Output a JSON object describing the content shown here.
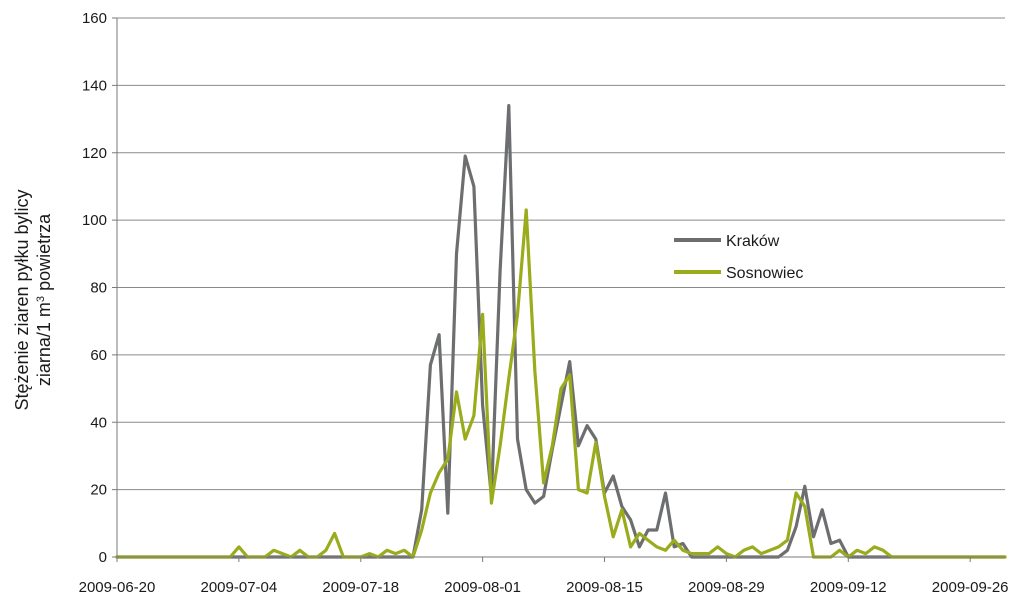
{
  "chart_data": {
    "type": "line",
    "ylabel_line1": "Stężenie ziaren pyłku bylicy",
    "ylabel_line2_prefix": "ziarna/1 m",
    "ylabel_line2_sup": "3",
    "ylabel_line2_suffix": " powietrza",
    "ylim": [
      0,
      160
    ],
    "y_ticks": [
      0,
      20,
      40,
      60,
      80,
      100,
      120,
      140,
      160
    ],
    "x_ticks": [
      "2009-06-20",
      "2009-07-04",
      "2009-07-18",
      "2009-08-01",
      "2009-08-15",
      "2009-08-29",
      "2009-09-12",
      "2009-09-26"
    ],
    "x_start": "2009-06-20",
    "x_end": "2009-09-30",
    "grid": "horizontal",
    "legend_position": "center-right",
    "series": [
      {
        "name": "Kraków",
        "color": "#6d6e70",
        "points": [
          [
            "2009-06-20",
            0
          ],
          [
            "2009-07-24",
            0
          ],
          [
            "2009-07-25",
            14
          ],
          [
            "2009-07-26",
            57
          ],
          [
            "2009-07-27",
            66
          ],
          [
            "2009-07-28",
            13
          ],
          [
            "2009-07-29",
            90
          ],
          [
            "2009-07-30",
            119
          ],
          [
            "2009-07-31",
            110
          ],
          [
            "2009-08-01",
            45
          ],
          [
            "2009-08-02",
            18
          ],
          [
            "2009-08-03",
            85
          ],
          [
            "2009-08-04",
            134
          ],
          [
            "2009-08-05",
            35
          ],
          [
            "2009-08-06",
            20
          ],
          [
            "2009-08-07",
            16
          ],
          [
            "2009-08-08",
            18
          ],
          [
            "2009-08-09",
            32
          ],
          [
            "2009-08-10",
            45
          ],
          [
            "2009-08-11",
            58
          ],
          [
            "2009-08-12",
            33
          ],
          [
            "2009-08-13",
            39
          ],
          [
            "2009-08-14",
            35
          ],
          [
            "2009-08-15",
            19
          ],
          [
            "2009-08-16",
            24
          ],
          [
            "2009-08-17",
            15
          ],
          [
            "2009-08-18",
            11
          ],
          [
            "2009-08-19",
            3
          ],
          [
            "2009-08-20",
            8
          ],
          [
            "2009-08-21",
            8
          ],
          [
            "2009-08-22",
            19
          ],
          [
            "2009-08-23",
            3
          ],
          [
            "2009-08-24",
            4
          ],
          [
            "2009-08-25",
            0
          ],
          [
            "2009-09-04",
            0
          ],
          [
            "2009-09-05",
            2
          ],
          [
            "2009-09-06",
            9
          ],
          [
            "2009-09-07",
            21
          ],
          [
            "2009-09-08",
            6
          ],
          [
            "2009-09-09",
            14
          ],
          [
            "2009-09-10",
            4
          ],
          [
            "2009-09-11",
            5
          ],
          [
            "2009-09-12",
            0
          ],
          [
            "2009-09-30",
            0
          ]
        ]
      },
      {
        "name": "Sosnowiec",
        "color": "#9aab1c",
        "points": [
          [
            "2009-06-20",
            0
          ],
          [
            "2009-07-03",
            0
          ],
          [
            "2009-07-04",
            3
          ],
          [
            "2009-07-05",
            0
          ],
          [
            "2009-07-07",
            0
          ],
          [
            "2009-07-08",
            2
          ],
          [
            "2009-07-09",
            1
          ],
          [
            "2009-07-10",
            0
          ],
          [
            "2009-07-11",
            2
          ],
          [
            "2009-07-12",
            0
          ],
          [
            "2009-07-13",
            0
          ],
          [
            "2009-07-14",
            2
          ],
          [
            "2009-07-15",
            7
          ],
          [
            "2009-07-16",
            0
          ],
          [
            "2009-07-18",
            0
          ],
          [
            "2009-07-19",
            1
          ],
          [
            "2009-07-20",
            0
          ],
          [
            "2009-07-21",
            2
          ],
          [
            "2009-07-22",
            1
          ],
          [
            "2009-07-23",
            2
          ],
          [
            "2009-07-24",
            0
          ],
          [
            "2009-07-25",
            8
          ],
          [
            "2009-07-26",
            19
          ],
          [
            "2009-07-27",
            25
          ],
          [
            "2009-07-28",
            29
          ],
          [
            "2009-07-29",
            49
          ],
          [
            "2009-07-30",
            35
          ],
          [
            "2009-07-31",
            42
          ],
          [
            "2009-08-01",
            72
          ],
          [
            "2009-08-02",
            16
          ],
          [
            "2009-08-03",
            33
          ],
          [
            "2009-08-04",
            53
          ],
          [
            "2009-08-05",
            72
          ],
          [
            "2009-08-06",
            103
          ],
          [
            "2009-08-07",
            55
          ],
          [
            "2009-08-08",
            22
          ],
          [
            "2009-08-09",
            33
          ],
          [
            "2009-08-10",
            50
          ],
          [
            "2009-08-11",
            54
          ],
          [
            "2009-08-12",
            20
          ],
          [
            "2009-08-13",
            19
          ],
          [
            "2009-08-14",
            34
          ],
          [
            "2009-08-15",
            18
          ],
          [
            "2009-08-16",
            6
          ],
          [
            "2009-08-17",
            14
          ],
          [
            "2009-08-18",
            3
          ],
          [
            "2009-08-19",
            7
          ],
          [
            "2009-08-20",
            5
          ],
          [
            "2009-08-21",
            3
          ],
          [
            "2009-08-22",
            2
          ],
          [
            "2009-08-23",
            5
          ],
          [
            "2009-08-24",
            2
          ],
          [
            "2009-08-25",
            1
          ],
          [
            "2009-08-26",
            1
          ],
          [
            "2009-08-27",
            1
          ],
          [
            "2009-08-28",
            3
          ],
          [
            "2009-08-29",
            1
          ],
          [
            "2009-08-30",
            0
          ],
          [
            "2009-08-31",
            2
          ],
          [
            "2009-09-01",
            3
          ],
          [
            "2009-09-02",
            1
          ],
          [
            "2009-09-03",
            2
          ],
          [
            "2009-09-04",
            3
          ],
          [
            "2009-09-05",
            5
          ],
          [
            "2009-09-06",
            19
          ],
          [
            "2009-09-07",
            15
          ],
          [
            "2009-09-08",
            0
          ],
          [
            "2009-09-10",
            0
          ],
          [
            "2009-09-11",
            2
          ],
          [
            "2009-09-12",
            0
          ],
          [
            "2009-09-13",
            2
          ],
          [
            "2009-09-14",
            1
          ],
          [
            "2009-09-15",
            3
          ],
          [
            "2009-09-16",
            2
          ],
          [
            "2009-09-17",
            0
          ],
          [
            "2009-09-30",
            0
          ]
        ]
      }
    ]
  }
}
